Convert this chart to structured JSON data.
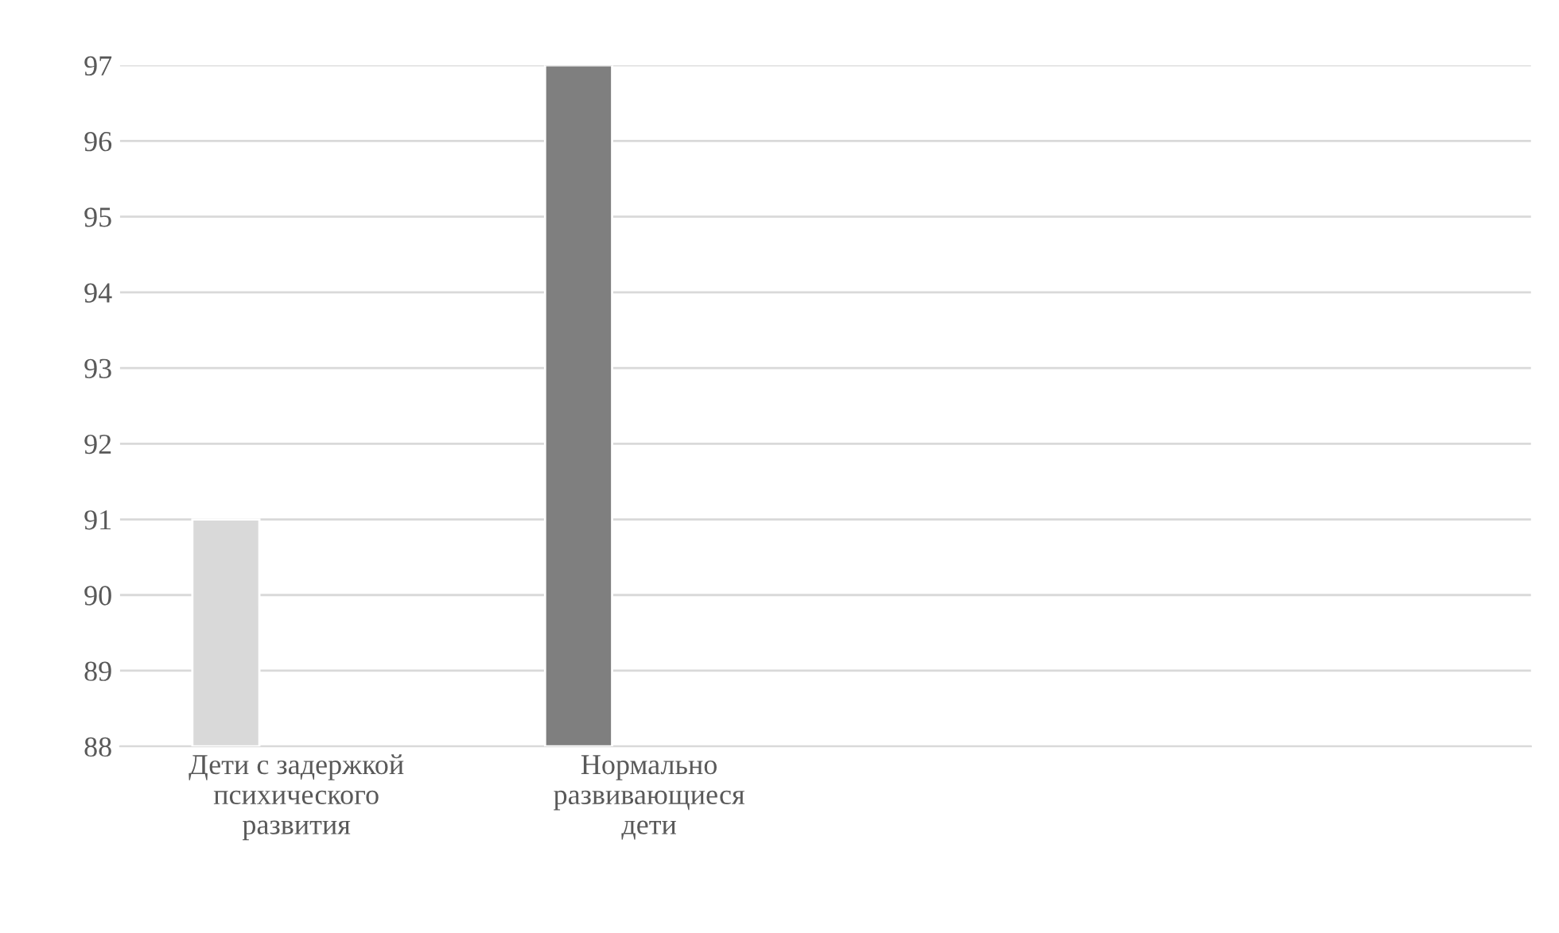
{
  "chart_data": {
    "type": "bar",
    "categories": [
      "Дети с задержкой психического развития",
      "Нормально развивающиеся дети",
      null,
      null
    ],
    "values": [
      91,
      97,
      null,
      null
    ],
    "colors": [
      "#d9d9d9",
      "#7f7f7f",
      "#d9d9d9",
      "#7f7f7f"
    ],
    "ylim": [
      88,
      97
    ],
    "yticks": [
      88,
      89,
      90,
      91,
      92,
      93,
      94,
      95,
      96,
      97
    ],
    "grid": "y",
    "legend": false
  }
}
